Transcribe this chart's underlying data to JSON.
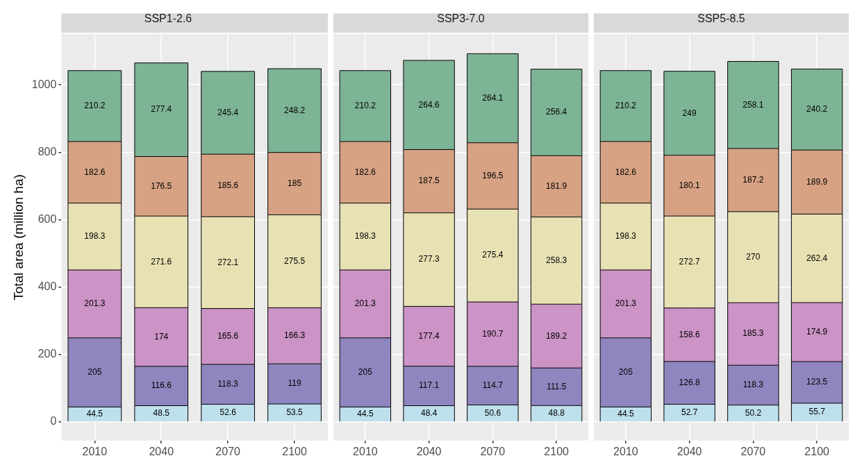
{
  "chart_data": [
    {
      "type": "bar",
      "title": "SSP1-2.6",
      "ylabel": "Total area (million ha)",
      "categories": [
        "2010",
        "2040",
        "2070",
        "2100"
      ],
      "stacked": true,
      "data_labels": true,
      "grid": true,
      "legend": false,
      "ylim": [
        -55,
        1150
      ],
      "yticks": [
        0,
        200,
        400,
        600,
        800,
        1000
      ],
      "series": [
        {
          "color": "#bde0ec",
          "values": [
            44.5,
            48.5,
            52.6,
            53.5
          ]
        },
        {
          "color": "#8f86bf",
          "values": [
            205,
            116.6,
            118.3,
            119
          ]
        },
        {
          "color": "#cc93c6",
          "values": [
            201.3,
            174,
            165.6,
            166.3
          ]
        },
        {
          "color": "#e8e1b4",
          "values": [
            198.3,
            271.6,
            272.1,
            275.5
          ]
        },
        {
          "color": "#d6a283",
          "values": [
            182.6,
            176.5,
            185.6,
            185
          ]
        },
        {
          "color": "#7db495",
          "values": [
            210.2,
            277.4,
            245.4,
            248.2
          ]
        }
      ]
    },
    {
      "type": "bar",
      "title": "SSP3-7.0",
      "categories": [
        "2010",
        "2040",
        "2070",
        "2100"
      ],
      "stacked": true,
      "data_labels": true,
      "grid": true,
      "legend": false,
      "tick_labels": "x",
      "ylim": [
        -55,
        1150
      ],
      "yticks": [
        0,
        200,
        400,
        600,
        800,
        1000
      ],
      "series": [
        {
          "color": "#bde0ec",
          "values": [
            44.5,
            48.4,
            50.6,
            48.8
          ]
        },
        {
          "color": "#8f86bf",
          "values": [
            205,
            117.1,
            114.7,
            111.5
          ]
        },
        {
          "color": "#cc93c6",
          "values": [
            201.3,
            177.4,
            190.7,
            189.2
          ]
        },
        {
          "color": "#e8e1b4",
          "values": [
            198.3,
            277.3,
            275.4,
            258.3
          ]
        },
        {
          "color": "#d6a283",
          "values": [
            182.6,
            187.5,
            196.5,
            181.9
          ]
        },
        {
          "color": "#7db495",
          "values": [
            210.2,
            264.6,
            264.1,
            256.4
          ]
        }
      ]
    },
    {
      "type": "bar",
      "title": "SSP5-8.5",
      "categories": [
        "2010",
        "2040",
        "2070",
        "2100"
      ],
      "stacked": true,
      "data_labels": true,
      "grid": true,
      "legend": false,
      "tick_labels": "x",
      "ylim": [
        -55,
        1150
      ],
      "yticks": [
        0,
        200,
        400,
        600,
        800,
        1000
      ],
      "series": [
        {
          "color": "#bde0ec",
          "values": [
            44.5,
            52.7,
            50.2,
            55.7
          ]
        },
        {
          "color": "#8f86bf",
          "values": [
            205,
            126.8,
            118.3,
            123.5
          ]
        },
        {
          "color": "#cc93c6",
          "values": [
            201.3,
            158.6,
            185.3,
            174.9
          ]
        },
        {
          "color": "#e8e1b4",
          "values": [
            198.3,
            272.7,
            270,
            262.4
          ]
        },
        {
          "color": "#d6a283",
          "values": [
            182.6,
            180.1,
            187.2,
            189.9
          ]
        },
        {
          "color": "#7db495",
          "values": [
            210.2,
            249,
            258.1,
            240.2
          ]
        }
      ]
    }
  ]
}
